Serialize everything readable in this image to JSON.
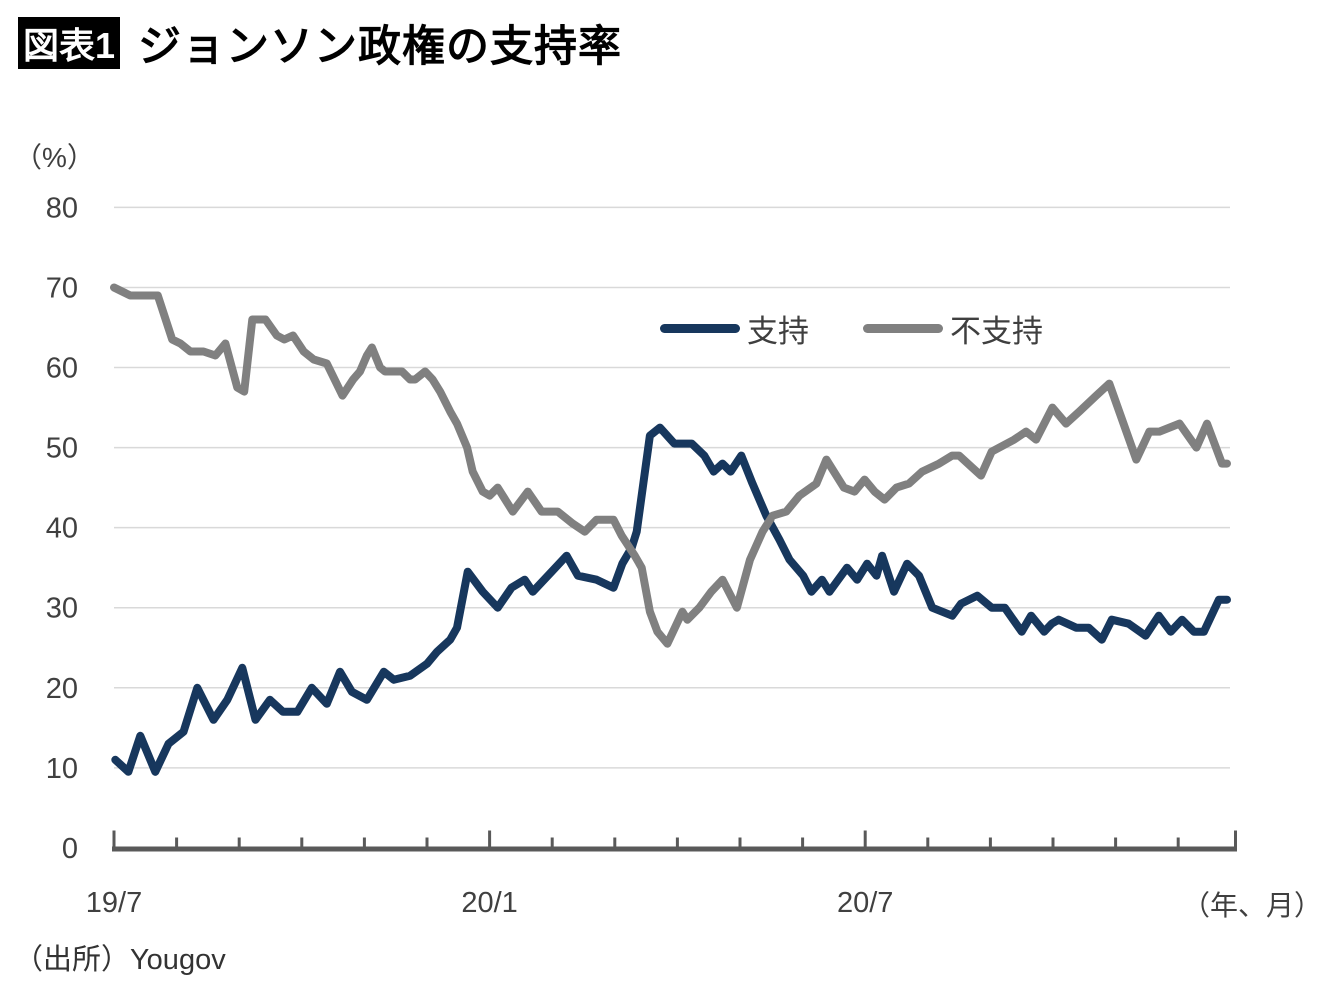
{
  "figure": {
    "tag": "図表1",
    "title": "ジョンソン政権の支持率"
  },
  "axis_labels": {
    "y_unit": "（%）",
    "x_unit": "（年、月）"
  },
  "source_note": "（出所）Yougov",
  "colors": {
    "approve": "#17375d",
    "disapprove": "#808080",
    "grid": "#d9d9d9",
    "axis": "#595959",
    "tick_text": "#404040"
  },
  "chart_data": {
    "type": "line",
    "title": "ジョンソン政権の支持率",
    "ylabel": "（%）",
    "xlabel": "（年、月）",
    "ylim": [
      0,
      80
    ],
    "yticks": [
      0,
      10,
      20,
      30,
      40,
      50,
      60,
      70,
      80
    ],
    "grid": "horizontal",
    "legend_position": "upper-middle-inside",
    "x_unit": "months since 2019-07",
    "x_months_total": 18,
    "xtick_labels": [
      {
        "month": 0,
        "label": "19/7"
      },
      {
        "month": 6,
        "label": "20/1"
      },
      {
        "month": 12,
        "label": "20/7"
      }
    ],
    "series": [
      {
        "name": "支持",
        "color": "#17375d",
        "points": [
          [
            0.02,
            11
          ],
          [
            0.23,
            9.5
          ],
          [
            0.42,
            14
          ],
          [
            0.66,
            9.5
          ],
          [
            0.87,
            13
          ],
          [
            1.11,
            14.5
          ],
          [
            1.33,
            20
          ],
          [
            1.59,
            16
          ],
          [
            1.81,
            18.5
          ],
          [
            2.05,
            22.5
          ],
          [
            2.26,
            16
          ],
          [
            2.49,
            18.5
          ],
          [
            2.7,
            17
          ],
          [
            2.93,
            17
          ],
          [
            3.16,
            20
          ],
          [
            3.4,
            18
          ],
          [
            3.61,
            22
          ],
          [
            3.8,
            19.5
          ],
          [
            4.04,
            18.5
          ],
          [
            4.31,
            22
          ],
          [
            4.47,
            21
          ],
          [
            4.73,
            21.5
          ],
          [
            5,
            23
          ],
          [
            5.16,
            24.5
          ],
          [
            5.37,
            26
          ],
          [
            5.48,
            27.5
          ],
          [
            5.65,
            34.5
          ],
          [
            5.89,
            32
          ],
          [
            6.13,
            30
          ],
          [
            6.35,
            32.5
          ],
          [
            6.56,
            33.5
          ],
          [
            6.69,
            32
          ],
          [
            6.99,
            34.5
          ],
          [
            7.23,
            36.5
          ],
          [
            7.41,
            34
          ],
          [
            7.71,
            33.5
          ],
          [
            7.98,
            32.5
          ],
          [
            8.12,
            35.5
          ],
          [
            8.27,
            37.5
          ],
          [
            8.35,
            39.5
          ],
          [
            8.56,
            51.5
          ],
          [
            8.72,
            52.5
          ],
          [
            8.95,
            50.5
          ],
          [
            9.23,
            50.5
          ],
          [
            9.43,
            49
          ],
          [
            9.58,
            47
          ],
          [
            9.72,
            48
          ],
          [
            9.85,
            47
          ],
          [
            10.02,
            49
          ],
          [
            10.2,
            45.5
          ],
          [
            10.42,
            41.5
          ],
          [
            10.63,
            38.5
          ],
          [
            10.79,
            36
          ],
          [
            11.01,
            34
          ],
          [
            11.14,
            32
          ],
          [
            11.31,
            33.5
          ],
          [
            11.43,
            32
          ],
          [
            11.71,
            35
          ],
          [
            11.87,
            33.5
          ],
          [
            12.03,
            35.5
          ],
          [
            12.18,
            34
          ],
          [
            12.27,
            36.5
          ],
          [
            12.46,
            32
          ],
          [
            12.67,
            35.5
          ],
          [
            12.86,
            34
          ],
          [
            13.07,
            30
          ],
          [
            13.23,
            29.5
          ],
          [
            13.39,
            29
          ],
          [
            13.53,
            30.5
          ],
          [
            13.79,
            31.5
          ],
          [
            14.02,
            30
          ],
          [
            14.23,
            30
          ],
          [
            14.5,
            27
          ],
          [
            14.65,
            29
          ],
          [
            14.86,
            27
          ],
          [
            14.98,
            28
          ],
          [
            15.09,
            28.5
          ],
          [
            15.37,
            27.5
          ],
          [
            15.57,
            27.5
          ],
          [
            15.78,
            26
          ],
          [
            15.94,
            28.5
          ],
          [
            16.21,
            28
          ],
          [
            16.48,
            26.5
          ],
          [
            16.69,
            29
          ],
          [
            16.88,
            27
          ],
          [
            17.06,
            28.5
          ],
          [
            17.25,
            27
          ],
          [
            17.41,
            27
          ],
          [
            17.65,
            31
          ],
          [
            17.78,
            31
          ]
        ]
      },
      {
        "name": "不支持",
        "color": "#808080",
        "points": [
          [
            0,
            70
          ],
          [
            0.13,
            69.5
          ],
          [
            0.26,
            69
          ],
          [
            0.7,
            69
          ],
          [
            0.93,
            63.5
          ],
          [
            1.06,
            63
          ],
          [
            1.22,
            62
          ],
          [
            1.43,
            62
          ],
          [
            1.62,
            61.5
          ],
          [
            1.78,
            63
          ],
          [
            1.97,
            57.5
          ],
          [
            2.08,
            57
          ],
          [
            2.21,
            66
          ],
          [
            2.42,
            66
          ],
          [
            2.6,
            64
          ],
          [
            2.72,
            63.5
          ],
          [
            2.86,
            64
          ],
          [
            3.03,
            62
          ],
          [
            3.19,
            61
          ],
          [
            3.4,
            60.5
          ],
          [
            3.65,
            56.5
          ],
          [
            3.82,
            58.5
          ],
          [
            3.93,
            59.5
          ],
          [
            4.04,
            61.5
          ],
          [
            4.12,
            62.5
          ],
          [
            4.25,
            60
          ],
          [
            4.33,
            59.5
          ],
          [
            4.49,
            59.5
          ],
          [
            4.6,
            59.5
          ],
          [
            4.73,
            58.5
          ],
          [
            4.81,
            58.5
          ],
          [
            4.97,
            59.5
          ],
          [
            5.09,
            58.5
          ],
          [
            5.21,
            57
          ],
          [
            5.37,
            54.5
          ],
          [
            5.48,
            53
          ],
          [
            5.64,
            50
          ],
          [
            5.73,
            47
          ],
          [
            5.89,
            44.5
          ],
          [
            6,
            44
          ],
          [
            6.13,
            45
          ],
          [
            6.37,
            42
          ],
          [
            6.61,
            44.5
          ],
          [
            6.83,
            42
          ],
          [
            7.09,
            42
          ],
          [
            7.33,
            40.5
          ],
          [
            7.52,
            39.5
          ],
          [
            7.71,
            41
          ],
          [
            7.81,
            41
          ],
          [
            7.98,
            41
          ],
          [
            8.11,
            39
          ],
          [
            8.32,
            36.5
          ],
          [
            8.43,
            35
          ],
          [
            8.56,
            29.5
          ],
          [
            8.68,
            27
          ],
          [
            8.84,
            25.5
          ],
          [
            8.99,
            28
          ],
          [
            9.08,
            29.5
          ],
          [
            9.16,
            28.5
          ],
          [
            9.35,
            30
          ],
          [
            9.54,
            32
          ],
          [
            9.72,
            33.5
          ],
          [
            9.95,
            30
          ],
          [
            10.16,
            36
          ],
          [
            10.36,
            39.5
          ],
          [
            10.52,
            41.5
          ],
          [
            10.74,
            42
          ],
          [
            10.95,
            44
          ],
          [
            11.22,
            45.5
          ],
          [
            11.38,
            48.5
          ],
          [
            11.66,
            45
          ],
          [
            11.83,
            44.5
          ],
          [
            11.99,
            46
          ],
          [
            12.15,
            44.5
          ],
          [
            12.31,
            43.5
          ],
          [
            12.5,
            45
          ],
          [
            12.7,
            45.5
          ],
          [
            12.91,
            47
          ],
          [
            13.18,
            48
          ],
          [
            13.39,
            49
          ],
          [
            13.5,
            49
          ],
          [
            13.71,
            47.5
          ],
          [
            13.85,
            46.5
          ],
          [
            14.02,
            49.5
          ],
          [
            14.14,
            50
          ],
          [
            14.38,
            51
          ],
          [
            14.57,
            52
          ],
          [
            14.73,
            51
          ],
          [
            14.99,
            55
          ],
          [
            15.21,
            53
          ],
          [
            15.42,
            54.5
          ],
          [
            15.69,
            56.5
          ],
          [
            15.9,
            58
          ],
          [
            16.33,
            48.5
          ],
          [
            16.54,
            52
          ],
          [
            16.7,
            52
          ],
          [
            17.02,
            53
          ],
          [
            17.29,
            50
          ],
          [
            17.46,
            53
          ],
          [
            17.7,
            48
          ],
          [
            17.78,
            48
          ]
        ]
      }
    ]
  }
}
